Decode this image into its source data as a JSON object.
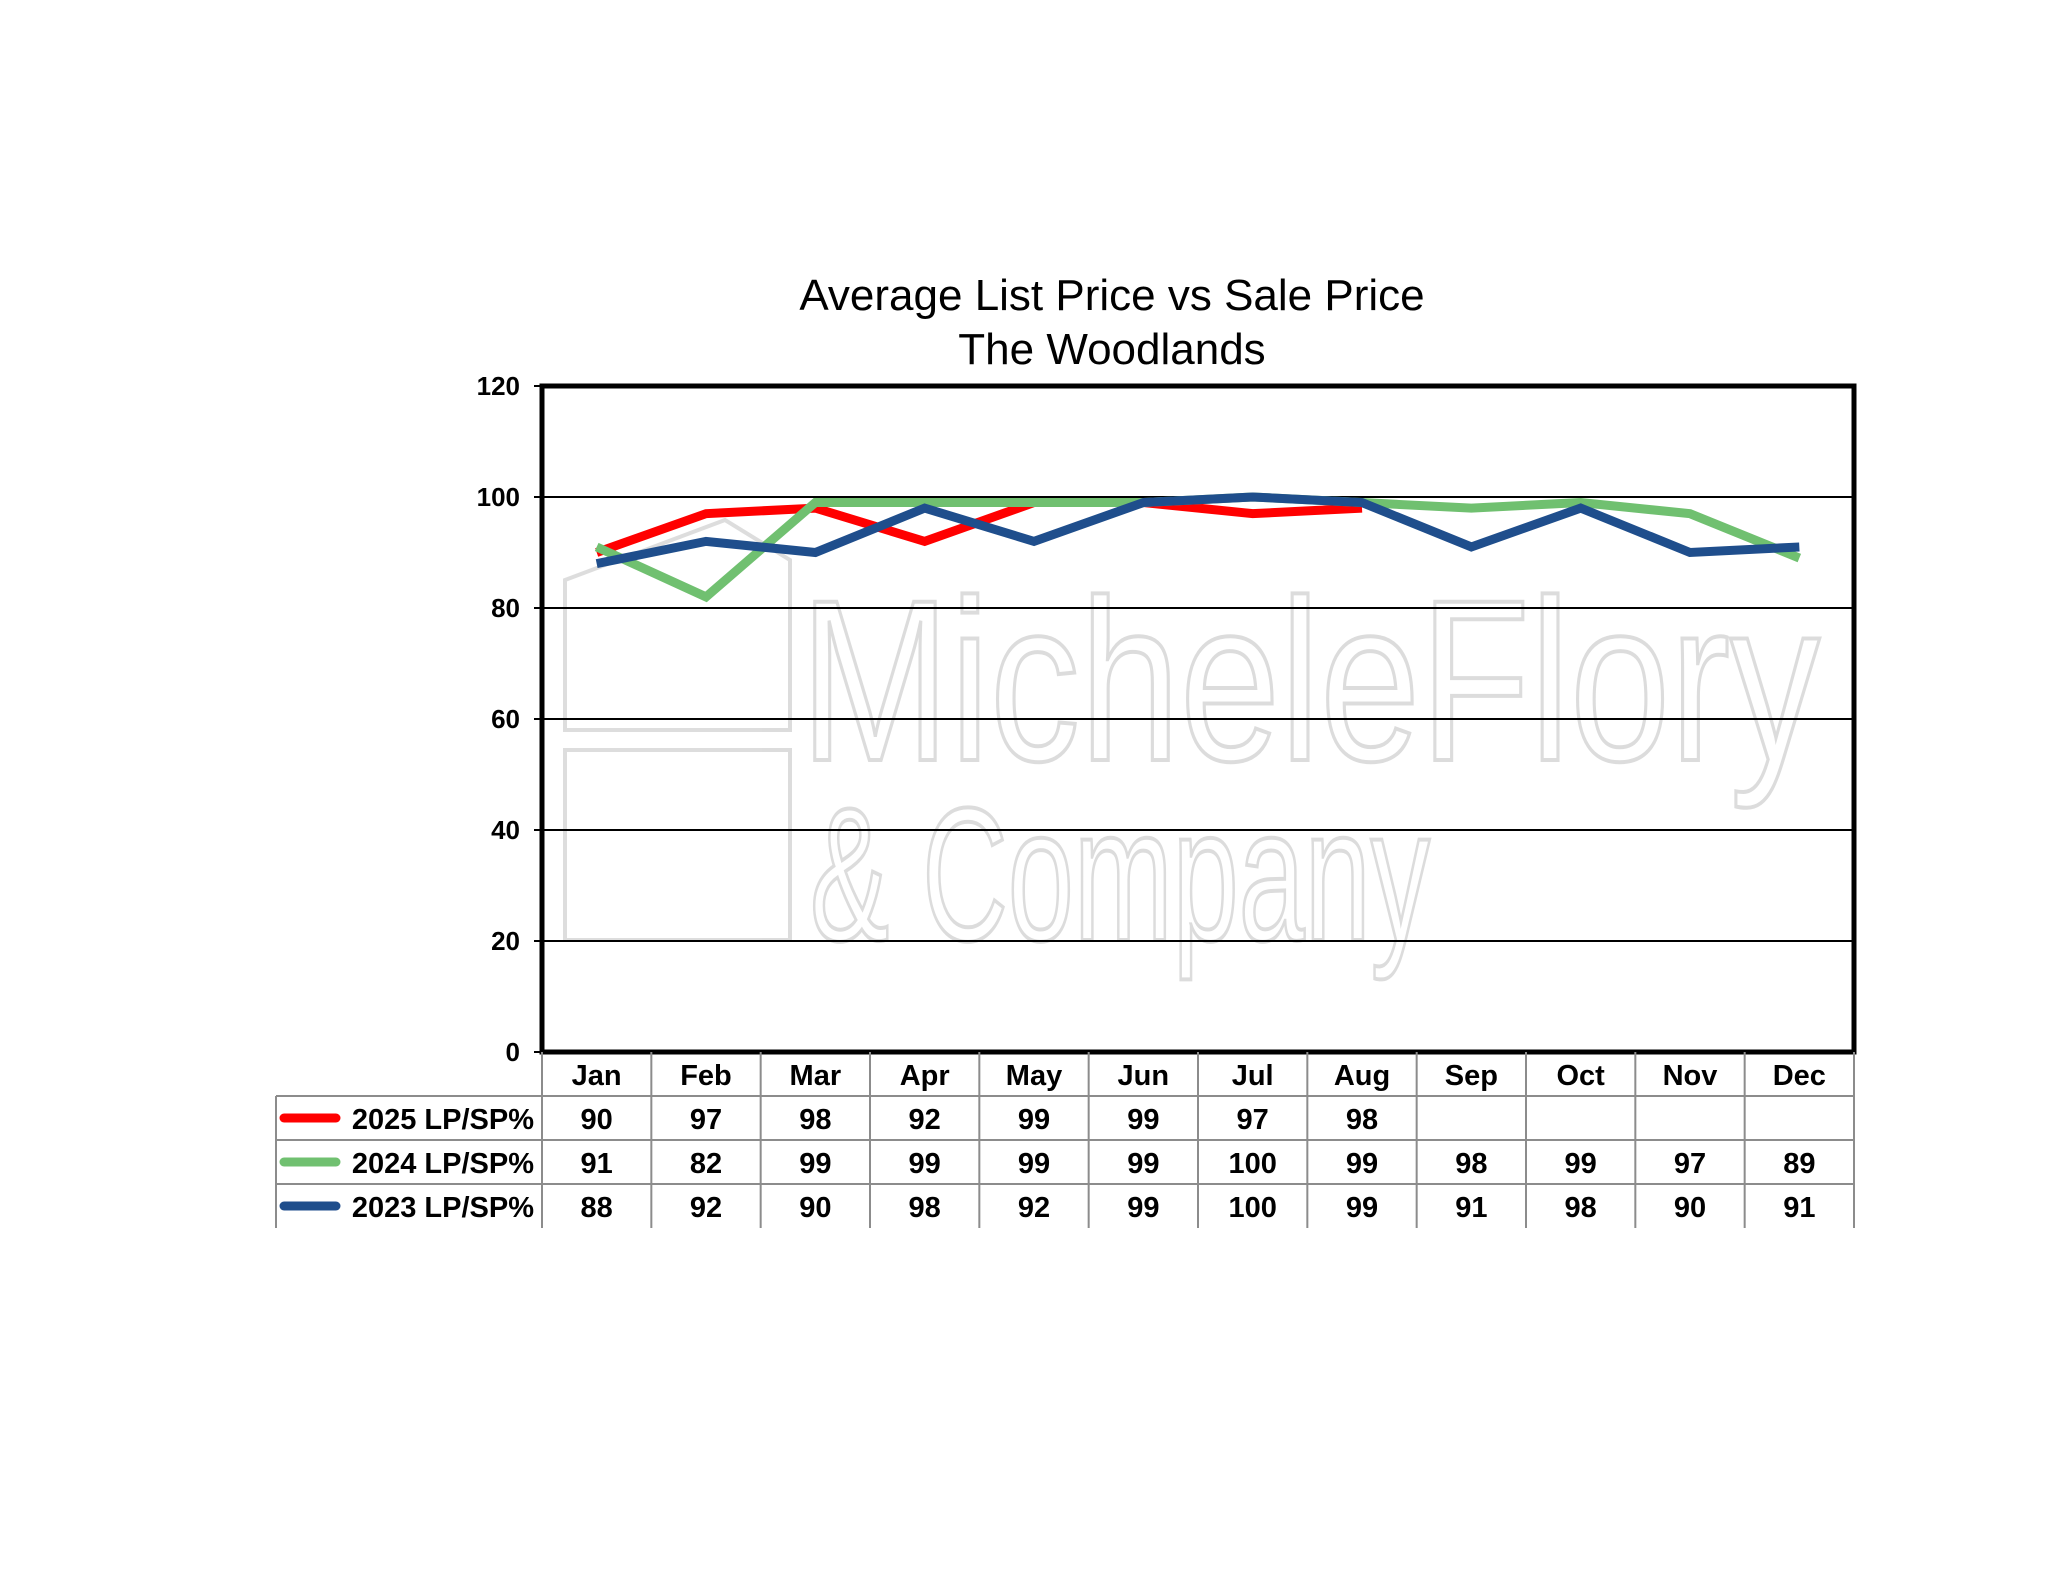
{
  "chart_data": {
    "type": "line",
    "title": "Average List Price vs Sale Price",
    "subtitle": "The Woodlands",
    "categories": [
      "Jan",
      "Feb",
      "Mar",
      "Apr",
      "May",
      "Jun",
      "Jul",
      "Aug",
      "Sep",
      "Oct",
      "Nov",
      "Dec"
    ],
    "ylim": [
      0,
      120
    ],
    "yticks": [
      0,
      20,
      40,
      60,
      80,
      100,
      120
    ],
    "grid": true,
    "legend": "data-table-below",
    "series": [
      {
        "name": "2025 LP/SP%",
        "color": "#ff0000",
        "values": [
          90,
          97,
          98,
          92,
          99,
          99,
          97,
          98,
          null,
          null,
          null,
          null
        ],
        "labels": [
          "90",
          "97",
          "98",
          "92",
          "99",
          "99",
          "97",
          "98",
          "",
          "",
          "",
          ""
        ]
      },
      {
        "name": "2024 LP/SP%",
        "color": "#70c070",
        "values": [
          91,
          82,
          99,
          99,
          99,
          99,
          100,
          99,
          98,
          99,
          97,
          89
        ],
        "labels": [
          "91",
          "82",
          "99",
          "99",
          "99",
          "99",
          "100",
          "99",
          "98",
          "99",
          "97",
          "89"
        ]
      },
      {
        "name": "2023 LP/SP%",
        "color": "#1f4e8c",
        "values": [
          88,
          92,
          90,
          98,
          92,
          99,
          100,
          99,
          91,
          98,
          90,
          91
        ],
        "labels": [
          "88",
          "92",
          "90",
          "98",
          "92",
          "99",
          "100",
          "99",
          "91",
          "98",
          "90",
          "91"
        ]
      }
    ]
  },
  "watermark": {
    "line1": "MicheleFlory",
    "line2": "& Company"
  }
}
